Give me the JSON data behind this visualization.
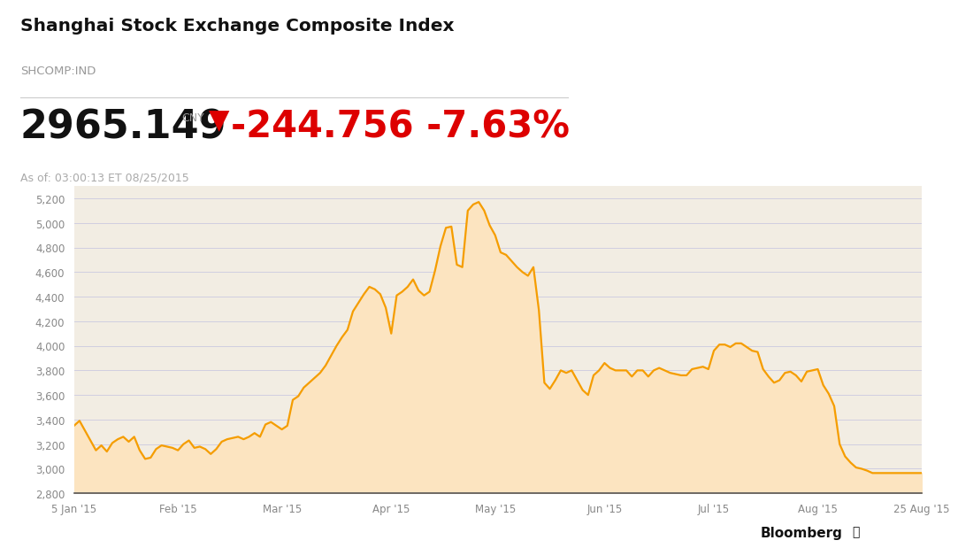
{
  "title": "Shanghai Stock Exchange Composite Index",
  "subtitle": "SHCOMP:IND",
  "price": "2965.149",
  "currency": "CNY",
  "change_arrow": "▼",
  "change_val": "-244.756 -7.63%",
  "as_of": "As of: 03:00:13 ET 08/25/2015",
  "bloomberg_text": "Bloomberg",
  "bg_color_top": "#ffffff",
  "bg_color_chart": "#f2ede3",
  "line_color": "#f59d00",
  "fill_color": "#fce4c0",
  "grid_color": "#d0cfe0",
  "title_color": "#111111",
  "subtitle_color": "#999999",
  "price_color": "#111111",
  "change_color": "#dd0000",
  "asof_color": "#aaaaaa",
  "ytick_color": "#888888",
  "xtick_color": "#888888",
  "divider_color": "#cccccc",
  "ylim": [
    2800,
    5300
  ],
  "yticks": [
    2800,
    3000,
    3200,
    3400,
    3600,
    3800,
    4000,
    4200,
    4400,
    4600,
    4800,
    5000,
    5200
  ],
  "xtick_labels": [
    "5 Jan '15",
    "Feb '15",
    "Mar '15",
    "Apr '15",
    "May '15",
    "Jun '15",
    "Jul '15",
    "Aug '15",
    "25 Aug '15"
  ],
  "xtick_positions": [
    0,
    19,
    38,
    58,
    77,
    97,
    117,
    136,
    155
  ],
  "y_values": [
    3350,
    3390,
    3310,
    3230,
    3150,
    3190,
    3140,
    3210,
    3240,
    3260,
    3220,
    3260,
    3150,
    3080,
    3090,
    3160,
    3190,
    3180,
    3170,
    3150,
    3200,
    3230,
    3170,
    3180,
    3160,
    3120,
    3160,
    3220,
    3240,
    3250,
    3260,
    3240,
    3260,
    3290,
    3260,
    3360,
    3380,
    3350,
    3320,
    3350,
    3560,
    3590,
    3660,
    3700,
    3740,
    3780,
    3840,
    3920,
    4000,
    4070,
    4130,
    4280,
    4350,
    4420,
    4480,
    4460,
    4420,
    4310,
    4100,
    4410,
    4440,
    4480,
    4540,
    4450,
    4410,
    4440,
    4610,
    4810,
    4960,
    4970,
    4660,
    4640,
    5100,
    5150,
    5170,
    5100,
    4980,
    4900,
    4760,
    4740,
    4690,
    4640,
    4600,
    4570,
    4640,
    4290,
    3700,
    3650,
    3720,
    3800,
    3780,
    3800,
    3720,
    3640,
    3600,
    3760,
    3800,
    3860,
    3820,
    3800,
    3800,
    3800,
    3750,
    3800,
    3800,
    3750,
    3800,
    3820,
    3800,
    3780,
    3770,
    3760,
    3760,
    3810,
    3820,
    3830,
    3810,
    3960,
    4010,
    4010,
    3990,
    4020,
    4020,
    3990,
    3960,
    3950,
    3810,
    3750,
    3700,
    3720,
    3780,
    3790,
    3760,
    3710,
    3790,
    3800,
    3810,
    3680,
    3610,
    3510,
    3200,
    3100,
    3050,
    3010,
    3000,
    2985,
    2965,
    2965,
    2965,
    2965,
    2965,
    2965,
    2965,
    2965,
    2965,
    2965
  ]
}
